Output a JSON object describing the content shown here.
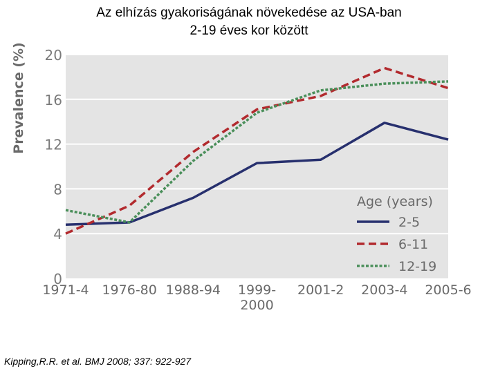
{
  "title_line1": "Az elhízás gyakoriságának növekedése az USA-ban",
  "title_line2": "2-19 éves kor között",
  "citation": "Kipping,R.R. et al. BMJ 2008; 337: 922-927",
  "chart_data": {
    "type": "line",
    "ylabel": "Prevalence (%)",
    "xlabel": "",
    "categories": [
      "1971-4",
      "1976-80",
      "1988-94",
      "1999-2000",
      "2001-2",
      "2003-4",
      "2005-6"
    ],
    "category_labels": [
      [
        "1971-4"
      ],
      [
        "1976-80"
      ],
      [
        "1988-94"
      ],
      [
        "1999-",
        "2000"
      ],
      [
        "2001-2"
      ],
      [
        "2003-4"
      ],
      [
        "2005-6"
      ]
    ],
    "ylim": [
      0,
      20
    ],
    "yticks": [
      0,
      4,
      8,
      12,
      16,
      20
    ],
    "grid": true,
    "background": "#e4e4e4",
    "legend_title": "Age (years)",
    "legend_position": "bottom-right",
    "series": [
      {
        "name": "2-5",
        "color": "#27306e",
        "dash": "solid",
        "values": [
          4.8,
          5.0,
          7.2,
          10.3,
          10.6,
          13.9,
          12.4
        ]
      },
      {
        "name": "6-11",
        "color": "#b22a2e",
        "dash": "dashed",
        "values": [
          4.0,
          6.5,
          11.3,
          15.1,
          16.3,
          18.8,
          17.0
        ]
      },
      {
        "name": "12-19",
        "color": "#4a8f5a",
        "dash": "dotted",
        "values": [
          6.1,
          5.0,
          10.5,
          14.8,
          16.8,
          17.4,
          17.6
        ]
      }
    ]
  }
}
